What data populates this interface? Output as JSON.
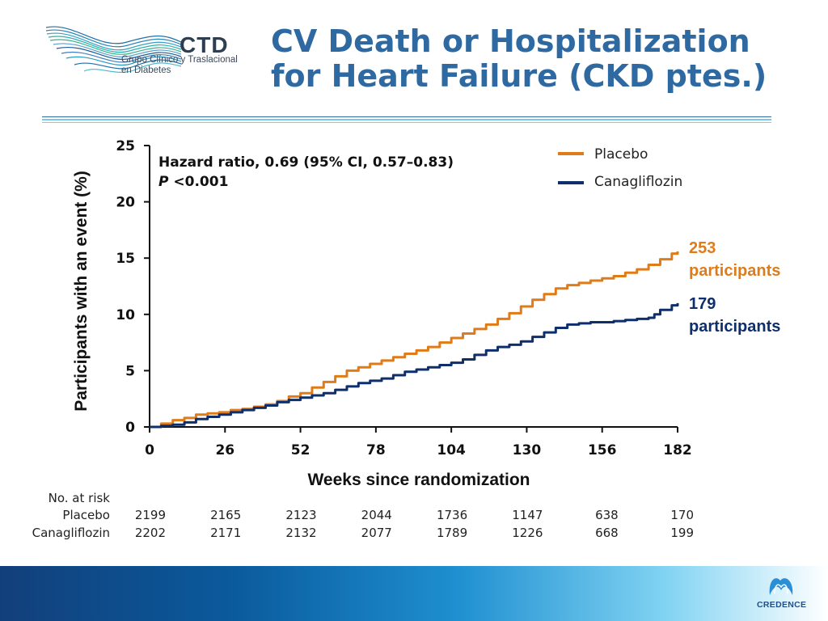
{
  "logo": {
    "name": "CTD",
    "subtitle_line1": "Grupo Clínico y Traslacional",
    "subtitle_line2": "en Diabetes"
  },
  "title_line1": "CV Death or Hospitalization",
  "title_line2": "for Heart Failure (CKD ptes.)",
  "annotation": {
    "hr": "Hazard ratio, 0.69 (95% CI, 0.57–0.83)",
    "p_italic": "P",
    "p_rest": " <0.001"
  },
  "end_labels": {
    "placebo_count": "253",
    "placebo_word": "participants",
    "cana_count": "179",
    "cana_word": "participants"
  },
  "risk_table": {
    "header": "No. at risk",
    "rows": [
      {
        "label": "Placebo",
        "values": [
          "2199",
          "2165",
          "2123",
          "2044",
          "1736",
          "1147",
          "638",
          "170"
        ]
      },
      {
        "label": "Canagliflozin",
        "values": [
          "2202",
          "2171",
          "2132",
          "2077",
          "1789",
          "1226",
          "668",
          "199"
        ]
      }
    ]
  },
  "footer": {
    "brand": "CREDENCE"
  },
  "colors": {
    "placebo": "#e07b1a",
    "canagliflozin": "#0e2f6b",
    "title": "#2e6aa1",
    "footer_dark": "#123f7b"
  },
  "chart_data": {
    "type": "line",
    "xlabel": "Weeks since randomization",
    "ylabel": "Participants with an event (%)",
    "xlim": [
      0,
      182
    ],
    "ylim": [
      0,
      25
    ],
    "xticks": [
      0,
      26,
      52,
      78,
      104,
      130,
      156,
      182
    ],
    "yticks": [
      0,
      5,
      10,
      15,
      20,
      25
    ],
    "legend": [
      "Placebo",
      "Canagliflozin"
    ],
    "series": [
      {
        "name": "Placebo",
        "color": "#e07b1a",
        "x": [
          0,
          4,
          8,
          12,
          16,
          20,
          24,
          28,
          32,
          36,
          40,
          44,
          48,
          52,
          56,
          60,
          64,
          68,
          72,
          76,
          80,
          84,
          88,
          92,
          96,
          100,
          104,
          108,
          112,
          116,
          120,
          124,
          128,
          132,
          136,
          140,
          144,
          148,
          152,
          156,
          160,
          164,
          168,
          172,
          176,
          180,
          182
        ],
        "y": [
          0,
          0.3,
          0.6,
          0.8,
          1.1,
          1.2,
          1.3,
          1.5,
          1.6,
          1.8,
          2.0,
          2.3,
          2.7,
          3.0,
          3.5,
          4.0,
          4.5,
          5.0,
          5.3,
          5.6,
          5.9,
          6.2,
          6.5,
          6.8,
          7.1,
          7.5,
          7.9,
          8.3,
          8.7,
          9.1,
          9.6,
          10.1,
          10.7,
          11.3,
          11.8,
          12.3,
          12.6,
          12.8,
          13.0,
          13.2,
          13.4,
          13.7,
          14.0,
          14.4,
          14.9,
          15.4,
          15.6
        ]
      },
      {
        "name": "Canagliflozin",
        "color": "#0e2f6b",
        "x": [
          0,
          4,
          8,
          12,
          16,
          20,
          24,
          28,
          32,
          36,
          40,
          44,
          48,
          52,
          56,
          60,
          64,
          68,
          72,
          76,
          80,
          84,
          88,
          92,
          96,
          100,
          104,
          108,
          112,
          116,
          120,
          124,
          128,
          132,
          136,
          140,
          144,
          148,
          152,
          156,
          160,
          164,
          168,
          172,
          174,
          176,
          180,
          182
        ],
        "y": [
          0,
          0.1,
          0.2,
          0.4,
          0.7,
          0.9,
          1.1,
          1.3,
          1.5,
          1.7,
          1.9,
          2.2,
          2.4,
          2.6,
          2.8,
          3.0,
          3.3,
          3.6,
          3.9,
          4.1,
          4.3,
          4.6,
          4.9,
          5.1,
          5.3,
          5.5,
          5.7,
          6.0,
          6.4,
          6.8,
          7.1,
          7.3,
          7.6,
          8.0,
          8.4,
          8.8,
          9.1,
          9.2,
          9.3,
          9.3,
          9.4,
          9.5,
          9.6,
          9.7,
          10.0,
          10.4,
          10.8,
          11.0
        ]
      }
    ]
  }
}
